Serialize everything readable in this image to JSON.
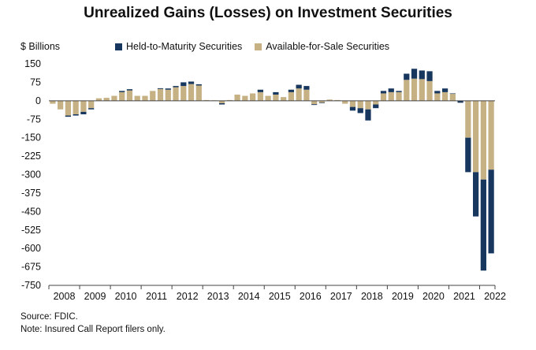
{
  "title": "Unrealized Gains (Losses) on Investment Securities",
  "y_unit_label": "$ Billions",
  "legend": [
    {
      "label": "Held-to-Maturity Securities",
      "color": "#17375e"
    },
    {
      "label": "Available-for-Sale Securities",
      "color": "#c6b184"
    }
  ],
  "source_text": "Source: FDIC.",
  "note_text": "Note: Insured Call Report filers only.",
  "chart_data": {
    "type": "bar",
    "stacked": true,
    "x_labels": [
      "2008",
      "2009",
      "2010",
      "2011",
      "2012",
      "2013",
      "2014",
      "2015",
      "2016",
      "2017",
      "2018",
      "2019",
      "2020",
      "2021",
      "2022"
    ],
    "y_ticks": [
      150,
      75,
      0,
      -75,
      -150,
      -225,
      -300,
      -375,
      -450,
      -525,
      -600,
      -675,
      -750
    ],
    "ylim": [
      -750,
      150
    ],
    "quarters_per_year": 4,
    "grid": false,
    "series": [
      {
        "name": "Available-for-Sale Securities",
        "color": "#c6b184",
        "values": [
          -12,
          -35,
          -60,
          -55,
          -45,
          -30,
          10,
          12,
          20,
          35,
          42,
          20,
          20,
          40,
          48,
          45,
          55,
          60,
          68,
          62,
          3,
          2,
          -10,
          3,
          25,
          20,
          30,
          35,
          20,
          25,
          15,
          35,
          50,
          45,
          -14,
          -8,
          5,
          3,
          -12,
          -25,
          -30,
          -35,
          -15,
          30,
          35,
          35,
          85,
          90,
          88,
          80,
          30,
          35,
          28,
          0,
          -150,
          -290,
          -320,
          -280
        ]
      },
      {
        "name": "Held-to-Maturity Securities",
        "color": "#17375e",
        "values": [
          0,
          0,
          -5,
          -5,
          -10,
          -5,
          0,
          0,
          0,
          5,
          5,
          0,
          0,
          0,
          3,
          5,
          5,
          15,
          10,
          5,
          0,
          0,
          -5,
          0,
          0,
          0,
          0,
          10,
          0,
          10,
          0,
          10,
          15,
          15,
          -3,
          -2,
          0,
          0,
          0,
          -15,
          -20,
          -45,
          -15,
          10,
          15,
          5,
          25,
          40,
          35,
          40,
          10,
          15,
          2,
          -8,
          -140,
          -180,
          -370,
          -340
        ]
      }
    ]
  }
}
